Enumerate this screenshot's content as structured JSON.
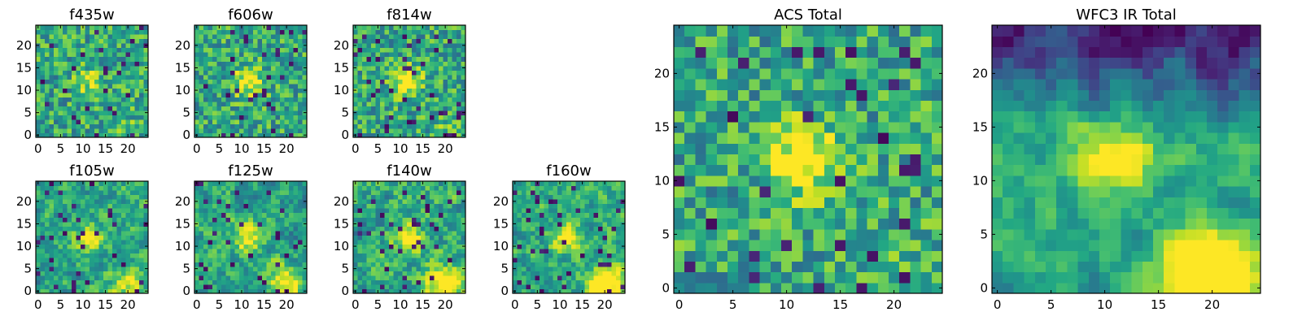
{
  "figure": {
    "colormap": "viridis",
    "colors": [
      "#440154",
      "#3b528b",
      "#21918c",
      "#5ec962",
      "#fde725"
    ]
  },
  "chart_data": [
    {
      "type": "heatmap",
      "title": "f435w",
      "grid": [
        25,
        25
      ],
      "xlim": [
        -0.5,
        24.5
      ],
      "ylim": [
        -0.5,
        24.5
      ],
      "xticks": [
        0,
        5,
        10,
        15,
        20
      ],
      "yticks": [
        0,
        5,
        10,
        15,
        20
      ],
      "seed": 11,
      "center_bright": 0.25,
      "corner_bright": 0.1,
      "dark_frac": 0.04,
      "smooth": 0
    },
    {
      "type": "heatmap",
      "title": "f606w",
      "grid": [
        25,
        25
      ],
      "xlim": [
        -0.5,
        24.5
      ],
      "ylim": [
        -0.5,
        24.5
      ],
      "xticks": [
        0,
        5,
        10,
        15,
        20
      ],
      "yticks": [
        0,
        5,
        10,
        15,
        20
      ],
      "seed": 23,
      "center_bright": 0.45,
      "corner_bright": 0.0,
      "dark_frac": 0.04,
      "smooth": 0
    },
    {
      "type": "heatmap",
      "title": "f814w",
      "grid": [
        25,
        25
      ],
      "xlim": [
        -0.5,
        24.5
      ],
      "ylim": [
        -0.5,
        24.5
      ],
      "xticks": [
        0,
        5,
        10,
        15,
        20
      ],
      "yticks": [
        0,
        5,
        10,
        15,
        20
      ],
      "seed": 37,
      "center_bright": 0.5,
      "corner_bright": 0.1,
      "dark_frac": 0.05,
      "smooth": 0
    },
    {
      "type": "heatmap",
      "title": "f105w",
      "grid": [
        25,
        25
      ],
      "xlim": [
        -0.5,
        24.5
      ],
      "ylim": [
        -0.5,
        24.5
      ],
      "xticks": [
        0,
        5,
        10,
        15,
        20
      ],
      "yticks": [
        0,
        5,
        10,
        15,
        20
      ],
      "seed": 41,
      "center_bright": 0.45,
      "corner_bright": 0.3,
      "dark_frac": 0.05,
      "smooth": 1
    },
    {
      "type": "heatmap",
      "title": "f125w",
      "grid": [
        25,
        25
      ],
      "xlim": [
        -0.5,
        24.5
      ],
      "ylim": [
        -0.5,
        24.5
      ],
      "xticks": [
        0,
        5,
        10,
        15,
        20
      ],
      "yticks": [
        0,
        5,
        10,
        15,
        20
      ],
      "seed": 53,
      "center_bright": 0.4,
      "corner_bright": 0.5,
      "dark_frac": 0.06,
      "smooth": 1
    },
    {
      "type": "heatmap",
      "title": "f140w",
      "grid": [
        25,
        25
      ],
      "xlim": [
        -0.5,
        24.5
      ],
      "ylim": [
        -0.5,
        24.5
      ],
      "xticks": [
        0,
        5,
        10,
        15,
        20
      ],
      "yticks": [
        0,
        5,
        10,
        15,
        20
      ],
      "seed": 67,
      "center_bright": 0.45,
      "corner_bright": 0.7,
      "dark_frac": 0.06,
      "smooth": 1
    },
    {
      "type": "heatmap",
      "title": "f160w",
      "grid": [
        25,
        25
      ],
      "xlim": [
        -0.5,
        24.5
      ],
      "ylim": [
        -0.5,
        24.5
      ],
      "xticks": [
        0,
        5,
        10,
        15,
        20
      ],
      "yticks": [
        0,
        5,
        10,
        15,
        20
      ],
      "seed": 79,
      "center_bright": 0.45,
      "corner_bright": 0.7,
      "dark_frac": 0.06,
      "smooth": 1
    },
    {
      "type": "heatmap",
      "title": "ACS Total",
      "grid": [
        25,
        25
      ],
      "xlim": [
        -0.5,
        24.5
      ],
      "ylim": [
        -0.5,
        24.5
      ],
      "xticks": [
        0,
        5,
        10,
        15,
        20
      ],
      "yticks": [
        0,
        5,
        10,
        15,
        20
      ],
      "seed": 97,
      "center_bright": 0.55,
      "corner_bright": 0.1,
      "dark_frac": 0.035,
      "smooth": 0
    },
    {
      "type": "heatmap",
      "title": "WFC3 IR Total",
      "grid": [
        25,
        25
      ],
      "xlim": [
        -0.5,
        24.5
      ],
      "ylim": [
        -0.5,
        24.5
      ],
      "xticks": [
        0,
        5,
        10,
        15,
        20
      ],
      "yticks": [
        0,
        5,
        10,
        15,
        20
      ],
      "seed": 131,
      "center_bright": 0.55,
      "corner_bright": 0.9,
      "dark_frac": 0.0,
      "smooth": 2,
      "top_dark": 0.55
    }
  ]
}
